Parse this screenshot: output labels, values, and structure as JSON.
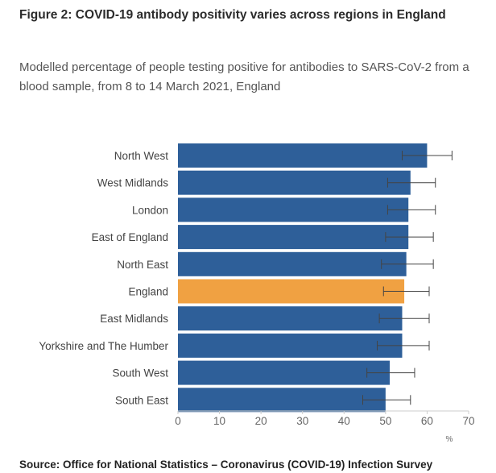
{
  "title": "Figure 2: COVID-19 antibody positivity varies across regions in England",
  "subtitle": "Modelled percentage of people testing positive for antibodies to SARS-CoV-2 from a blood sample, from 8 to 14 March 2021, England",
  "source": "Source: Office for National Statistics – Coronavirus (COVID-19) Infection Survey",
  "colors": {
    "bar": "#2e5f99",
    "highlight": "#f0a142",
    "error": "#444444",
    "axis": "#cccccc"
  },
  "chart_data": {
    "type": "bar",
    "orientation": "horizontal",
    "categories": [
      "North West",
      "West Midlands",
      "London",
      "East of England",
      "North East",
      "England",
      "East Midlands",
      "Yorkshire and The Humber",
      "South West",
      "South East"
    ],
    "values": [
      60.0,
      56.0,
      55.5,
      55.5,
      55.0,
      54.5,
      54.0,
      54.0,
      51.0,
      50.0
    ],
    "error_lower": [
      54.0,
      50.5,
      50.5,
      50.0,
      49.0,
      49.5,
      48.5,
      48.0,
      45.5,
      44.5
    ],
    "error_upper": [
      66.0,
      62.0,
      62.0,
      61.5,
      61.5,
      60.5,
      60.5,
      60.5,
      57.0,
      56.0
    ],
    "highlight": [
      "England"
    ],
    "xlim": [
      0,
      70
    ],
    "xticks": [
      0,
      10,
      20,
      30,
      40,
      50,
      60,
      70
    ],
    "xunit": "%",
    "grid": false
  }
}
